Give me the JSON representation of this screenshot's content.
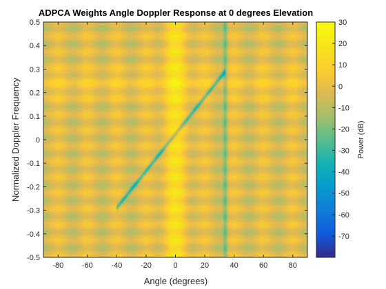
{
  "chart_data": {
    "type": "heatmap",
    "title": "ADPCA Weights Angle Doppler Response at 0 degrees Elevation",
    "xlabel": "Angle (degrees)",
    "ylabel": "Normalized Doppler Frequency",
    "colorbar_label": "Power (dB)",
    "xlim": [
      -90,
      90
    ],
    "ylim": [
      -0.5,
      0.5
    ],
    "clim": [
      -80,
      30
    ],
    "x_ticks": [
      -80,
      -60,
      -40,
      -20,
      0,
      20,
      40,
      60,
      80
    ],
    "y_ticks": [
      -0.5,
      -0.4,
      -0.3,
      -0.2,
      -0.1,
      0,
      0.1,
      0.2,
      0.3,
      0.4,
      0.5
    ],
    "colorbar_ticks": [
      30,
      20,
      10,
      0,
      -10,
      -20,
      -30,
      -40,
      -50,
      -60,
      -70
    ],
    "colormap": "parula",
    "features": {
      "peak": {
        "angle": 0,
        "doppler": 0.24,
        "power": 25
      },
      "clutter_ridge": {
        "start": [
          -40,
          -0.29
        ],
        "end": [
          34,
          0.29
        ]
      },
      "jammer_null_angle": 34
    }
  }
}
